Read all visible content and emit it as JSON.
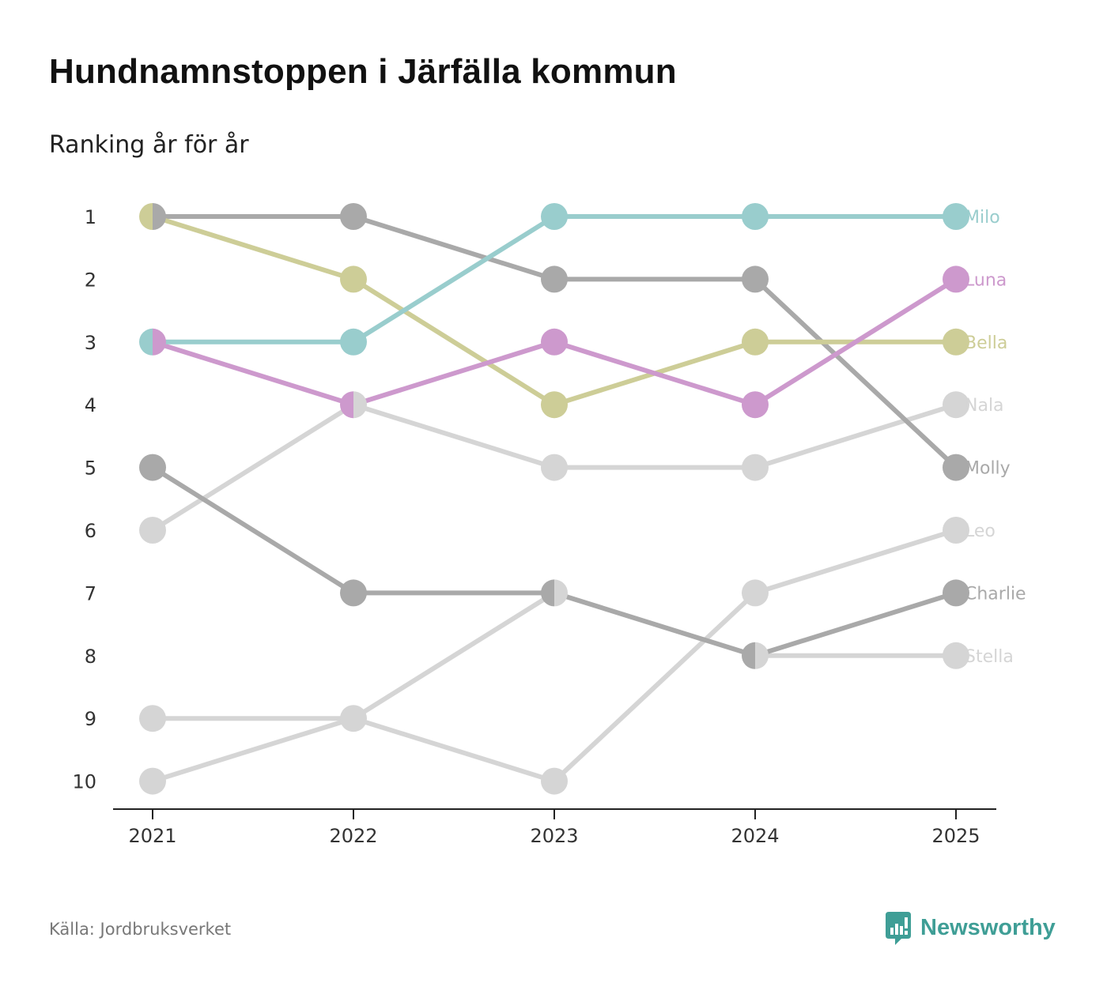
{
  "title": "Hundnamnstoppen i Järfälla kommun",
  "subtitle": "Ranking år för år",
  "source": "Källa: Jordbruksverket",
  "brand": {
    "name": "Newsworthy",
    "icon": "newsworthy-logo-icon",
    "color": "#3f9e96"
  },
  "chart_data": {
    "type": "line",
    "chart_kind": "bump",
    "title": "Hundnamnstoppen i Järfälla kommun",
    "subtitle": "Ranking år för år",
    "xlabel": "",
    "ylabel": "",
    "x": [
      "2021",
      "2022",
      "2023",
      "2024",
      "2025"
    ],
    "y_ticks": [
      "1",
      "2",
      "3",
      "4",
      "5",
      "6",
      "7",
      "8",
      "9",
      "10"
    ],
    "ylim": [
      1,
      10
    ],
    "y_inverted": true,
    "series": [
      {
        "name": "Stella",
        "color": "#d5d5d5",
        "values": [
          10,
          9,
          7,
          8,
          8
        ]
      },
      {
        "name": "Leo",
        "color": "#d5d5d5",
        "values": [
          9,
          9,
          10,
          7,
          6
        ]
      },
      {
        "name": "Nala",
        "color": "#d5d5d5",
        "values": [
          6,
          4,
          5,
          5,
          4
        ]
      },
      {
        "name": "Charlie",
        "color": "#a9a9a9",
        "values": [
          5,
          7,
          7,
          8,
          7
        ]
      },
      {
        "name": "Molly",
        "color": "#a9a9a9",
        "values": [
          1,
          1,
          2,
          2,
          5
        ]
      },
      {
        "name": "Bella",
        "color": "#cdcd97",
        "values": [
          1,
          2,
          4,
          3,
          3
        ]
      },
      {
        "name": "Luna",
        "color": "#cd99cd",
        "values": [
          3,
          4,
          3,
          4,
          2
        ]
      },
      {
        "name": "Milo",
        "color": "#99cdcd",
        "values": [
          3,
          3,
          1,
          1,
          1
        ]
      }
    ]
  }
}
